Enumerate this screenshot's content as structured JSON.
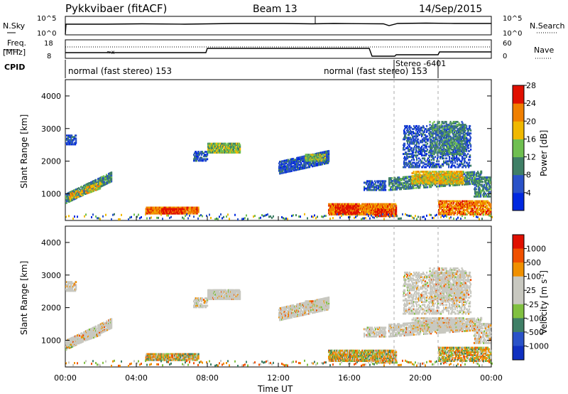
{
  "header": {
    "title": "Pykkvibaer (fitACF)",
    "beam": "Beam 13",
    "date": "14/Sep/2015"
  },
  "panels": {
    "nsky_label": "N.Sky",
    "nsky_ticks": [
      "10^5",
      "10^0"
    ],
    "nsearch_label": "N.Search",
    "nsearch_ticks": [
      "10^5",
      "10^0"
    ],
    "freq_label_line1": "Freq.",
    "freq_label_line2": "[MHz]",
    "freq_ticks": [
      "18",
      "8"
    ],
    "nave_label": "Nave",
    "nave_ticks": [
      "60",
      "0"
    ],
    "cpid_label": "CPID",
    "cpid_segments": [
      "normal (fast stereo) 153",
      "normal (fast stereo) 153",
      "Stereo -6401"
    ]
  },
  "chart_data": [
    {
      "type": "heatmap",
      "name": "power",
      "ylabel": "Slant Range [km]",
      "yticks": [
        1000,
        2000,
        3000,
        4000
      ],
      "ylim": [
        180,
        4500
      ],
      "xlim": [
        0,
        24
      ],
      "colorbar_label": "Power [dB]",
      "colorbar_ticks": [
        "4",
        "8",
        "12",
        "16",
        "20",
        "24",
        "28"
      ],
      "colors": [
        "#0028e0",
        "#2a52c8",
        "#3f7f66",
        "#6fbf50",
        "#f0b800",
        "#f07f00",
        "#e01000"
      ]
    },
    {
      "type": "heatmap",
      "name": "velocity",
      "ylabel": "Slant Range [km]",
      "yticks": [
        1000,
        2000,
        3000,
        4000
      ],
      "ylim": [
        180,
        4500
      ],
      "xlim": [
        0,
        24
      ],
      "xlabel": "Time UT",
      "xticks": [
        "00:00",
        "04:00",
        "08:00",
        "12:00",
        "16:00",
        "20:00",
        "00:00"
      ],
      "colorbar_label": "Velocity [m s-1]",
      "colorbar_ticks": [
        "1000",
        "500",
        "100",
        "25",
        "-25",
        "-100",
        "-500",
        "-1000"
      ],
      "colors": [
        "#e01000",
        "#f05000",
        "#f09000",
        "#c8c8c0",
        "#c8c8c0",
        "#80c040",
        "#3f7f66",
        "#2a52c8",
        "#1030c0"
      ]
    }
  ]
}
